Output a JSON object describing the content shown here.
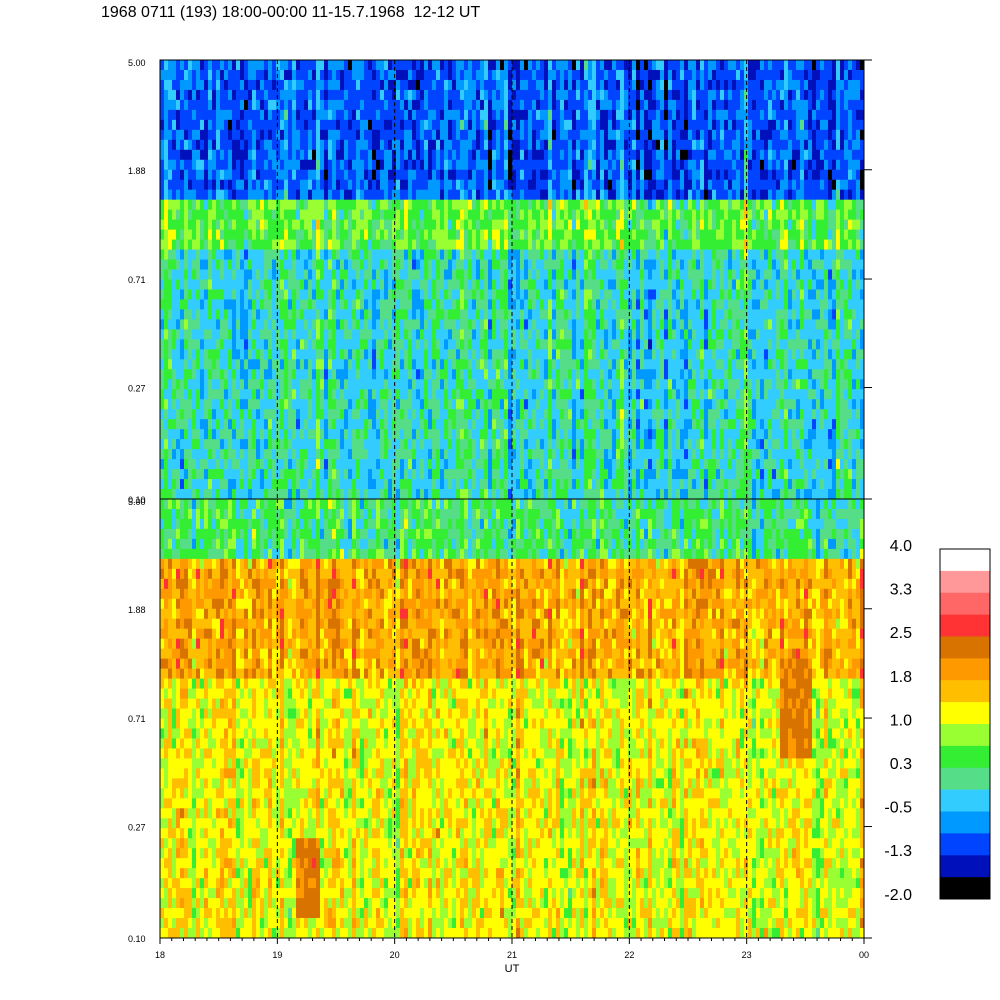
{
  "header": {
    "title": "1968 0711 (193) 18:00-00:00 11-15.7.1968  12-12 UT"
  },
  "chart_data": [
    {
      "type": "heatmap",
      "panel": "upper",
      "x": {
        "label": "",
        "range": [
          18,
          24
        ],
        "unit": "UT hours"
      },
      "y": {
        "label": "",
        "scale": "log",
        "range": [
          0.1,
          5.0
        ],
        "tick_labels": [
          "5.00",
          "1.88",
          "0.71",
          "0.27",
          "0.10"
        ]
      },
      "vertical_dashed_lines_at": [
        19,
        20,
        21,
        22,
        23
      ],
      "dominant_levels": "-0.5 to 1.0 (cyan/green/yellow)",
      "bands": [
        {
          "y_range": [
            1.5,
            5.0
          ],
          "typical_level": -0.6
        },
        {
          "y_range": [
            0.9,
            1.5
          ],
          "typical_level": 0.9
        },
        {
          "y_range": [
            0.1,
            0.9
          ],
          "typical_level": 0.3
        }
      ]
    },
    {
      "type": "heatmap",
      "panel": "lower",
      "x": {
        "label": "UT",
        "range": [
          18,
          24
        ],
        "tick_labels": [
          "18",
          "19",
          "20",
          "21",
          "22",
          "23",
          "00"
        ]
      },
      "y": {
        "label": "",
        "scale": "log",
        "range": [
          0.1,
          5.0
        ],
        "tick_labels": [
          "5.00",
          "1.88",
          "0.71",
          "0.27",
          "0.10"
        ]
      },
      "vertical_dashed_lines_at": [
        19,
        20,
        21,
        22,
        23
      ],
      "dominant_levels": "1.0 to 2.5 (yellow/orange/brown)",
      "bands": [
        {
          "y_range": [
            3.0,
            5.0
          ],
          "typical_level": 0.6
        },
        {
          "y_range": [
            1.0,
            3.0
          ],
          "typical_level": 2.2
        },
        {
          "y_range": [
            0.1,
            1.0
          ],
          "typical_level": 1.6
        }
      ],
      "features": [
        {
          "x_range": [
            23.3,
            23.55
          ],
          "y_range": [
            0.5,
            1.2
          ],
          "level": 2.6
        },
        {
          "x_range": [
            19.15,
            19.35
          ],
          "y_range": [
            0.12,
            0.25
          ],
          "level": 2.6
        }
      ]
    }
  ],
  "colorbar": {
    "labels": [
      "4.0",
      "3.3",
      "2.5",
      "1.8",
      "1.0",
      "0.3",
      "-0.5",
      "-1.3",
      "-2.0"
    ],
    "levels_top_to_bottom": [
      {
        "value": 4.0,
        "color": "#ffffff"
      },
      {
        "value": 3.6,
        "color": "#ff9999"
      },
      {
        "value": 3.3,
        "color": "#ff6666"
      },
      {
        "value": 2.9,
        "color": "#ff3333"
      },
      {
        "value": 2.5,
        "color": "#d97300"
      },
      {
        "value": 2.2,
        "color": "#ff9900"
      },
      {
        "value": 1.8,
        "color": "#ffbf00"
      },
      {
        "value": 1.4,
        "color": "#ffff00"
      },
      {
        "value": 1.0,
        "color": "#99ff33"
      },
      {
        "value": 0.6,
        "color": "#33ee33"
      },
      {
        "value": 0.3,
        "color": "#55dd88"
      },
      {
        "value": -0.1,
        "color": "#33ccff"
      },
      {
        "value": -0.5,
        "color": "#0099ff"
      },
      {
        "value": -0.9,
        "color": "#0044ff"
      },
      {
        "value": -1.3,
        "color": "#0011bb"
      },
      {
        "value": -2.0,
        "color": "#000000"
      }
    ]
  }
}
